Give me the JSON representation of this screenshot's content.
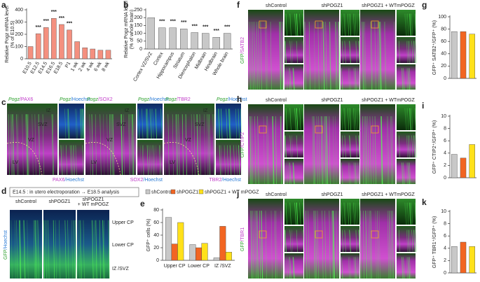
{
  "chart_data": [
    {
      "type": "bar",
      "label": "a",
      "ylabel": [
        "Relative Pogz mRNA level",
        "(% of E10.5)"
      ],
      "categories": [
        "E10.5",
        "E12.5",
        "E14.5",
        "E16.5",
        "E18.5",
        "P1",
        "1 wk",
        "2 wk",
        "4 wk",
        "6 wk",
        "8 wk"
      ],
      "values": [
        100,
        205,
        255,
        330,
        280,
        235,
        140,
        90,
        80,
        70,
        70
      ],
      "significance": [
        null,
        "***",
        "***",
        "***",
        "***",
        "***",
        null,
        null,
        null,
        null,
        null
      ],
      "color": "#f4907f",
      "ylim": [
        0,
        400
      ],
      "yticks": [
        0,
        100,
        200,
        300,
        400
      ]
    },
    {
      "type": "bar",
      "label": "b",
      "ylabel": [
        "Relative Pogz mRNA level",
        "(% of whole brain)"
      ],
      "categories": [
        "Cortex VZ/SVZ",
        "Cortex",
        "Hippocampus",
        "Striatum",
        "Diencephalon",
        "Midbrain",
        "Hindbrain",
        "Whole brain"
      ],
      "values": [
        200,
        135,
        135,
        128,
        105,
        100,
        75,
        100
      ],
      "significance": [
        null,
        "***",
        "***",
        "***",
        "***",
        "***",
        "***",
        "***"
      ],
      "color": "#c8c8c8",
      "ylim": [
        0,
        250
      ],
      "yticks": [
        0,
        50,
        100,
        150,
        200,
        250
      ]
    },
    {
      "type": "grouped-bar",
      "label": "e",
      "ylabel": [
        "GFP⁺ cells (%)"
      ],
      "categories": [
        "Upper CP",
        "Lower CP",
        "IZ /SVZ"
      ],
      "series": [
        {
          "name": "shControl",
          "color": "#c8c8c8",
          "values": [
            68,
            25,
            4
          ]
        },
        {
          "name": "shPOGZ1",
          "color": "#f26522",
          "values": [
            26,
            20,
            54
          ]
        },
        {
          "name": "shPOGZ1 + WT mPOGZ",
          "color": "#ffe11a",
          "values": [
            60,
            27,
            13
          ]
        }
      ],
      "ylim": [
        0,
        80
      ],
      "yticks": [
        0,
        20,
        40,
        60,
        80
      ]
    },
    {
      "type": "bar",
      "label": "g",
      "ylabel": [
        "GFP⁺ SATB2⁺/GFP⁺ (%)"
      ],
      "values": [
        76,
        76,
        72
      ],
      "colors": [
        "#c8c8c8",
        "#f26522",
        "#ffe11a"
      ],
      "ylim": [
        0,
        100
      ],
      "yticks": [
        0,
        20,
        40,
        60,
        80,
        100
      ]
    },
    {
      "type": "bar",
      "label": "i",
      "ylabel": [
        "GFP⁺ CTIP2⁺/GFP⁺ (%)"
      ],
      "values": [
        3.8,
        3.2,
        5.4
      ],
      "colors": [
        "#c8c8c8",
        "#f26522",
        "#ffe11a"
      ],
      "ylim": [
        0,
        10
      ],
      "yticks": [
        0,
        2,
        4,
        6,
        8,
        10
      ]
    },
    {
      "type": "bar",
      "label": "k",
      "ylabel": [
        "GFP⁺ TBR1⁺/GFP⁺ (%)"
      ],
      "values": [
        4.3,
        5.0,
        4.3
      ],
      "colors": [
        "#c8c8c8",
        "#f26522",
        "#ffe11a"
      ],
      "ylim": [
        0,
        10
      ],
      "yticks": [
        0,
        2,
        4,
        6,
        8,
        10
      ]
    }
  ],
  "figure": {
    "c": {
      "label": "c",
      "groups": [
        {
          "gene": "Pogz",
          "marker": "/PAX6",
          "stain": "/Hoechst",
          "bottom": "PAX6"
        },
        {
          "gene": "Pogz",
          "marker": "/SOX2",
          "stain": "/Hoechst",
          "bottom": "SOX2"
        },
        {
          "gene": "Pogz",
          "marker": "/TBR2",
          "stain": "/Hoechst",
          "bottom": "TBR2"
        }
      ],
      "regions": [
        "IZ",
        "SVZ",
        "VZ",
        "LV"
      ]
    },
    "d": {
      "label": "d",
      "protocol": "E14.5 : in utero electroporation → E18.5 analysis",
      "conditions": [
        [
          "shControl"
        ],
        [
          "shPOGZ1"
        ],
        [
          "shPOGZ1",
          "+ WT mPOGZ"
        ]
      ],
      "zones": [
        "Upper CP",
        "Lower CP",
        "IZ /SVZ"
      ],
      "gfp": "GFP",
      "stain": "/Hoechst"
    },
    "rows": [
      {
        "label": "f",
        "gfp": "GFP",
        "stain": "/SATB2"
      },
      {
        "label": "h",
        "gfp": "GFP",
        "stain": "/CTIP2"
      },
      {
        "label": "j",
        "gfp": "GFP",
        "stain": "/TBR1"
      }
    ],
    "conditions": [
      "shControl",
      "shPOGZ1",
      "shPOGZ1 + WTmPOGZ"
    ]
  }
}
